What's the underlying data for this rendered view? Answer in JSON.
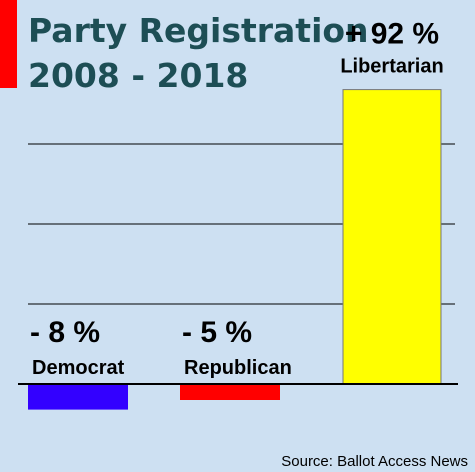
{
  "chart_data": {
    "type": "bar",
    "title_line1": "Party Registration",
    "title_line2": "2008 - 2018",
    "categories": [
      "Democrat",
      "Republican",
      "Libertarian"
    ],
    "values": [
      -8,
      -5,
      92
    ],
    "value_labels": [
      "- 8 %",
      "- 5 %",
      "+ 92 %"
    ],
    "colors": [
      "#3300ff",
      "#ff0000",
      "#ffff00"
    ],
    "ylim": [
      -12,
      100
    ],
    "grid": true,
    "source": "Source: Ballot Access News"
  },
  "accent_color": "#ff0000"
}
